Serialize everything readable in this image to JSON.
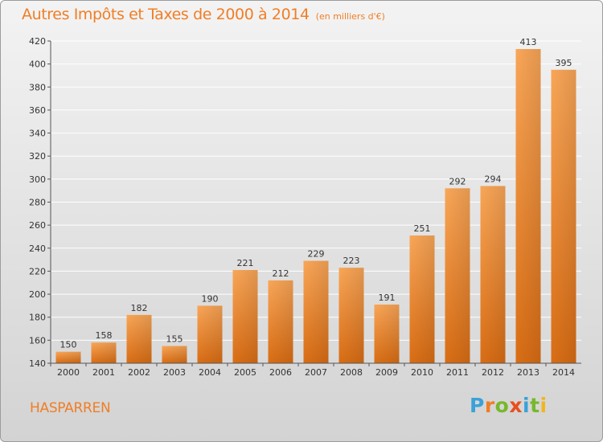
{
  "chart_data": {
    "type": "bar",
    "title": "Autres Impôts et Taxes de 2000 à 2014",
    "unit": "(en milliers d'€)",
    "categories": [
      "2000",
      "2001",
      "2002",
      "2003",
      "2004",
      "2005",
      "2006",
      "2007",
      "2008",
      "2009",
      "2010",
      "2011",
      "2012",
      "2013",
      "2014"
    ],
    "values": [
      150,
      158,
      182,
      155,
      190,
      221,
      212,
      229,
      223,
      191,
      251,
      292,
      294,
      413,
      395
    ],
    "ylim": [
      140,
      420
    ],
    "yticks": [
      140,
      160,
      180,
      200,
      220,
      240,
      260,
      280,
      300,
      320,
      340,
      360,
      380,
      400,
      420
    ],
    "grid": true,
    "bar_color": "#f07e25",
    "xlabel": "",
    "ylabel": ""
  },
  "commune": "HASPARREN",
  "logo": {
    "text": "Proxiti",
    "letters": [
      "P",
      "r",
      "o",
      "x",
      "i",
      "t",
      "i"
    ],
    "colors": [
      "#3aa2d8",
      "#f07e25",
      "#77b82a",
      "#e94f1d",
      "#3aa2d8",
      "#77b82a",
      "#f2b51c"
    ]
  }
}
